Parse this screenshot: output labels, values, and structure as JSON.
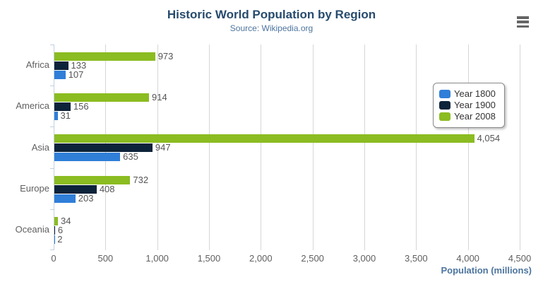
{
  "toolbar": {
    "menu_icon": "hamburger-menu-icon"
  },
  "chart_data": {
    "type": "bar",
    "title": "Historic World Population by Region",
    "subtitle": "Source: Wikipedia.org",
    "categories": [
      "Africa",
      "America",
      "Asia",
      "Europe",
      "Oceania"
    ],
    "series": [
      {
        "name": "Year 1800",
        "color": "#2f7ed8",
        "values": [
          107,
          31,
          635,
          203,
          2
        ]
      },
      {
        "name": "Year 1900",
        "color": "#0d233a",
        "values": [
          133,
          156,
          947,
          408,
          6
        ]
      },
      {
        "name": "Year 2008",
        "color": "#8bbc21",
        "values": [
          973,
          914,
          4054,
          732,
          34
        ]
      }
    ],
    "bar_order_top_to_bottom": [
      "Year 2008",
      "Year 1900",
      "Year 1800"
    ],
    "xlabel": "Population (millions)",
    "xlim": [
      0,
      4500
    ],
    "xtick_step": 500,
    "xtick_labels": [
      "0",
      "500",
      "1,000",
      "1,500",
      "2,000",
      "2,500",
      "3,000",
      "3,500",
      "4,000",
      "4,500"
    ],
    "grid": true,
    "value_labels": true,
    "legend_position": "right",
    "legend_items": [
      "Year 1800",
      "Year 1900",
      "Year 2008"
    ],
    "colors": {
      "title": "#274b6d",
      "subtitle": "#4d759e",
      "axis_title": "#4d759e",
      "labels": "#606060",
      "value_labels": "#555555",
      "legend_text": "#333333",
      "grid": "#d6d6d6",
      "axis_line": "#c0d0e0",
      "menu_icon": "#666666"
    }
  }
}
